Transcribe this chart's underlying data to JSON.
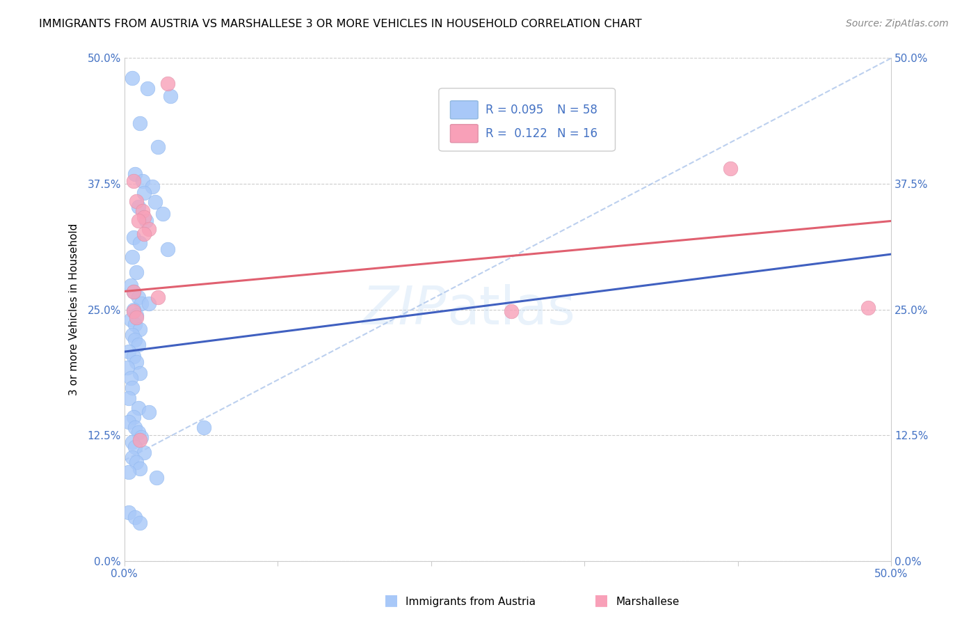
{
  "title": "IMMIGRANTS FROM AUSTRIA VS MARSHALLESE 3 OR MORE VEHICLES IN HOUSEHOLD CORRELATION CHART",
  "source": "Source: ZipAtlas.com",
  "ylabel": "3 or more Vehicles in Household",
  "ytick_labels": [
    "0.0%",
    "12.5%",
    "25.0%",
    "37.5%",
    "50.0%"
  ],
  "ytick_values": [
    0.0,
    0.125,
    0.25,
    0.375,
    0.5
  ],
  "xrange": [
    0.0,
    0.5
  ],
  "yrange": [
    0.0,
    0.5
  ],
  "blue_color": "#a8c8f8",
  "pink_color": "#f8a0b8",
  "blue_line_color": "#4060C0",
  "pink_line_color": "#E06070",
  "dashed_line_color": "#a0bce8",
  "scatter_blue": [
    [
      0.005,
      0.48
    ],
    [
      0.015,
      0.47
    ],
    [
      0.03,
      0.462
    ],
    [
      0.01,
      0.435
    ],
    [
      0.022,
      0.412
    ],
    [
      0.007,
      0.385
    ],
    [
      0.012,
      0.378
    ],
    [
      0.018,
      0.372
    ],
    [
      0.013,
      0.366
    ],
    [
      0.02,
      0.357
    ],
    [
      0.009,
      0.352
    ],
    [
      0.025,
      0.345
    ],
    [
      0.014,
      0.338
    ],
    [
      0.006,
      0.322
    ],
    [
      0.01,
      0.316
    ],
    [
      0.028,
      0.31
    ],
    [
      0.005,
      0.302
    ],
    [
      0.008,
      0.287
    ],
    [
      0.004,
      0.274
    ],
    [
      0.006,
      0.268
    ],
    [
      0.009,
      0.262
    ],
    [
      0.011,
      0.256
    ],
    [
      0.016,
      0.256
    ],
    [
      0.006,
      0.25
    ],
    [
      0.008,
      0.244
    ],
    [
      0.004,
      0.24
    ],
    [
      0.007,
      0.235
    ],
    [
      0.01,
      0.23
    ],
    [
      0.005,
      0.225
    ],
    [
      0.007,
      0.22
    ],
    [
      0.009,
      0.215
    ],
    [
      0.003,
      0.208
    ],
    [
      0.006,
      0.203
    ],
    [
      0.008,
      0.198
    ],
    [
      0.002,
      0.192
    ],
    [
      0.01,
      0.187
    ],
    [
      0.004,
      0.182
    ],
    [
      0.005,
      0.172
    ],
    [
      0.003,
      0.162
    ],
    [
      0.009,
      0.152
    ],
    [
      0.016,
      0.148
    ],
    [
      0.006,
      0.143
    ],
    [
      0.003,
      0.138
    ],
    [
      0.007,
      0.133
    ],
    [
      0.009,
      0.128
    ],
    [
      0.011,
      0.123
    ],
    [
      0.005,
      0.118
    ],
    [
      0.007,
      0.113
    ],
    [
      0.013,
      0.108
    ],
    [
      0.005,
      0.103
    ],
    [
      0.008,
      0.098
    ],
    [
      0.01,
      0.092
    ],
    [
      0.003,
      0.088
    ],
    [
      0.021,
      0.083
    ],
    [
      0.052,
      0.133
    ],
    [
      0.003,
      0.048
    ],
    [
      0.007,
      0.043
    ],
    [
      0.01,
      0.038
    ]
  ],
  "scatter_pink": [
    [
      0.028,
      0.475
    ],
    [
      0.006,
      0.378
    ],
    [
      0.008,
      0.358
    ],
    [
      0.012,
      0.348
    ],
    [
      0.013,
      0.342
    ],
    [
      0.009,
      0.338
    ],
    [
      0.016,
      0.33
    ],
    [
      0.013,
      0.325
    ],
    [
      0.006,
      0.268
    ],
    [
      0.006,
      0.248
    ],
    [
      0.008,
      0.242
    ],
    [
      0.022,
      0.262
    ],
    [
      0.01,
      0.12
    ],
    [
      0.485,
      0.252
    ],
    [
      0.395,
      0.39
    ],
    [
      0.252,
      0.248
    ]
  ],
  "blue_trendline_x": [
    0.0,
    0.5
  ],
  "blue_trendline_y": [
    0.208,
    0.305
  ],
  "pink_trendline_x": [
    0.0,
    0.5
  ],
  "pink_trendline_y": [
    0.268,
    0.338
  ],
  "dashed_line_x": [
    0.0,
    0.5
  ],
  "dashed_line_y": [
    0.1,
    0.5
  ],
  "legend_r1": "0.095",
  "legend_n1": "58",
  "legend_r2": "0.122",
  "legend_n2": "16",
  "watermark_zip": "ZIP",
  "watermark_atlas": "atlas"
}
